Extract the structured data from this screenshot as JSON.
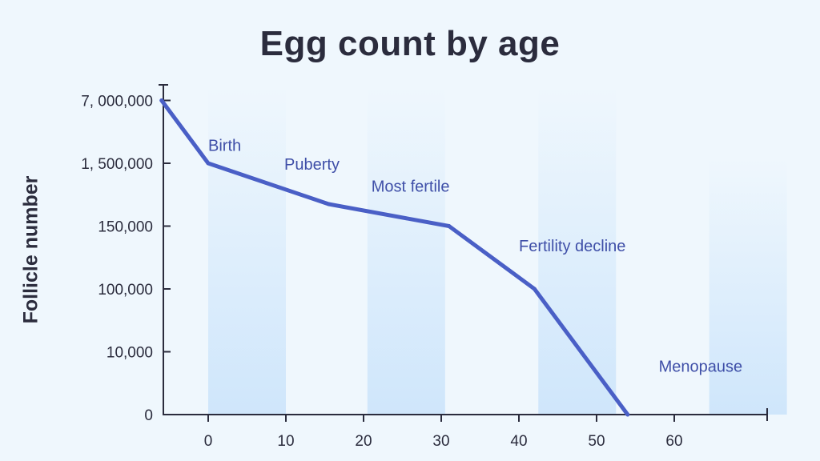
{
  "chart_data": {
    "type": "line",
    "title": "Egg count by age",
    "xlabel": "",
    "ylabel": "Follicle number",
    "x_ticks": [
      0,
      10,
      20,
      30,
      40,
      50,
      60
    ],
    "y_ticks": [
      "0",
      "10,000",
      "100,000",
      "150,000",
      "1, 500,000",
      "7, 000,000"
    ],
    "series": [
      {
        "name": "Follicle number",
        "points": [
          {
            "age": -6,
            "level": 5
          },
          {
            "age": 0,
            "level": 4
          },
          {
            "age": 15.5,
            "level": 3.35
          },
          {
            "age": 31,
            "level": 3
          },
          {
            "age": 42,
            "level": 2
          },
          {
            "age": 54,
            "level": 0
          }
        ]
      }
    ],
    "stages": [
      {
        "label": "Birth",
        "start": 0,
        "end": 10,
        "label_age": 0,
        "label_level": 4.2
      },
      {
        "label": "Puberty",
        "start": null,
        "end": null,
        "label_age": 9.8,
        "label_level": 3.9
      },
      {
        "label": "Most fertile",
        "start": 20.5,
        "end": 30.5,
        "label_age": 21,
        "label_level": 3.55
      },
      {
        "label": "Fertility decline",
        "start": 42.5,
        "end": 52.5,
        "label_age": 40,
        "label_level": 2.6
      },
      {
        "label": "Menopause",
        "start": 64.5,
        "end": 74.5,
        "label_age": 58,
        "label_level": 0.68
      }
    ],
    "colors": {
      "line": "#4a5fc6",
      "band": "#cfe6fb",
      "axis": "#2b2c3d",
      "label": "#3f4fa8",
      "background": "#eff7fd"
    }
  }
}
